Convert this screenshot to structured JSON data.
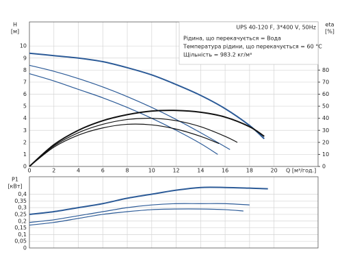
{
  "chart_data": [
    {
      "type": "line",
      "y_label": "H",
      "y_unit": "[м]",
      "y2_label": "eta",
      "y2_unit": "[%]",
      "x_label": "Q [м³/год.]",
      "annotations": [
        "UPS 40-120 F, 3*400 V, 50Hz",
        "Рідина, що перекачується = Вода",
        "Температура рідини, що перекачується = 60 °C",
        "Щільність = 983.2 кг/м³"
      ],
      "xlim": [
        0,
        23.6
      ],
      "xticks": [
        0,
        2,
        4,
        6,
        8,
        10,
        12,
        14,
        16,
        18,
        20
      ],
      "ylim": [
        0,
        12
      ],
      "yticks": [
        0,
        1,
        2,
        3,
        4,
        5,
        6,
        7,
        8,
        9,
        10
      ],
      "y2lim": [
        0,
        120
      ],
      "y2ticks": [
        0,
        10,
        20,
        30,
        40,
        50,
        60,
        70,
        80
      ],
      "grid": true,
      "series": [
        {
          "color": "#2b5a97",
          "width": 2,
          "x": [
            0,
            2,
            4,
            6,
            8,
            10,
            12,
            14,
            16,
            18,
            19.2
          ],
          "values": [
            9.4,
            9.2,
            9.0,
            8.7,
            8.2,
            7.6,
            6.8,
            5.9,
            4.8,
            3.4,
            2.3
          ]
        },
        {
          "color": "#2b5a97",
          "width": 1.2,
          "x": [
            0,
            2,
            4,
            6,
            8,
            10,
            12,
            14,
            16.4
          ],
          "values": [
            8.4,
            7.9,
            7.3,
            6.6,
            5.8,
            4.9,
            3.9,
            2.8,
            1.4
          ]
        },
        {
          "color": "#2b5a97",
          "width": 1.2,
          "x": [
            0,
            2,
            4,
            6,
            8,
            10,
            12,
            14,
            15.4
          ],
          "values": [
            7.7,
            7.1,
            6.4,
            5.7,
            4.9,
            4.0,
            3.0,
            1.9,
            1.0
          ]
        },
        {
          "color": "#111111",
          "width": 2,
          "axis": "y2",
          "x": [
            0,
            2,
            4,
            6,
            8,
            10,
            12,
            14,
            16,
            18,
            19.2
          ],
          "values": [
            0,
            18,
            30,
            38,
            43,
            46,
            46.5,
            45,
            41,
            33,
            25
          ]
        },
        {
          "color": "#111111",
          "width": 1.2,
          "axis": "y2",
          "x": [
            0,
            2,
            4,
            6,
            8,
            10,
            12,
            14,
            16,
            17
          ],
          "values": [
            0,
            17,
            28,
            35,
            39,
            40,
            38,
            33,
            25,
            20
          ]
        },
        {
          "color": "#111111",
          "width": 1.2,
          "axis": "y2",
          "x": [
            0,
            2,
            4,
            6,
            8,
            10,
            12,
            14,
            15.5
          ],
          "values": [
            0,
            16,
            26,
            32,
            35,
            34.5,
            31,
            25,
            19
          ]
        }
      ]
    },
    {
      "type": "line",
      "y_label": "P1",
      "y_unit": "[кВт]",
      "xlim": [
        0,
        23.6
      ],
      "ylim": [
        0,
        0.53
      ],
      "yticks": [
        0,
        {
          "value": 0.05,
          "label": "0,05"
        },
        {
          "value": 0.1,
          "label": "0,1"
        },
        {
          "value": 0.15,
          "label": "0,15"
        },
        {
          "value": 0.2,
          "label": "0,2"
        },
        {
          "value": 0.25,
          "label": "0,25"
        },
        {
          "value": 0.3,
          "label": "0,3"
        },
        {
          "value": 0.35,
          "label": "0,35"
        },
        {
          "value": 0.4,
          "label": "0,4"
        }
      ],
      "grid": true,
      "series": [
        {
          "color": "#2b5a97",
          "width": 2,
          "x": [
            0,
            2,
            4,
            6,
            8,
            10,
            12,
            14,
            16,
            18,
            19.5
          ],
          "values": [
            0.25,
            0.27,
            0.3,
            0.33,
            0.37,
            0.4,
            0.43,
            0.45,
            0.45,
            0.445,
            0.44
          ]
        },
        {
          "color": "#2b5a97",
          "width": 1.2,
          "x": [
            0,
            2,
            4,
            6,
            8,
            10,
            12,
            14,
            16,
            18
          ],
          "values": [
            0.19,
            0.21,
            0.24,
            0.27,
            0.3,
            0.32,
            0.33,
            0.33,
            0.33,
            0.32
          ]
        },
        {
          "color": "#2b5a97",
          "width": 1.2,
          "x": [
            0,
            2,
            4,
            6,
            8,
            10,
            12,
            14,
            16,
            17.5
          ],
          "values": [
            0.17,
            0.19,
            0.22,
            0.25,
            0.27,
            0.285,
            0.29,
            0.29,
            0.285,
            0.275
          ]
        }
      ]
    }
  ]
}
